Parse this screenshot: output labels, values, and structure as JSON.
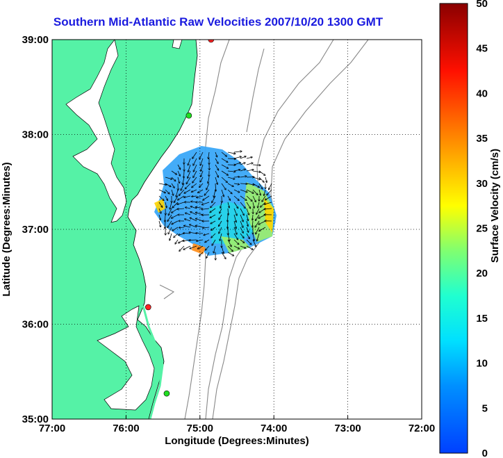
{
  "title": "Southern Mid-Atlantic Raw Velocities 2007/10/20 1300 GMT",
  "xlabel": "Longitude (Degrees:Minutes)",
  "ylabel": "Latitude (Degrees:Minutes)",
  "x_ticks": [
    "77:00",
    "76:00",
    "75:00",
    "74:00",
    "73:00",
    "72:00"
  ],
  "y_ticks": [
    "39:00",
    "38:00",
    "37:00",
    "36:00",
    "35:00"
  ],
  "colorbar": {
    "label": "Surface Velocity (cm/s)",
    "ticks": [
      "0",
      "5",
      "10",
      "15",
      "20",
      "25",
      "30",
      "35",
      "40",
      "45",
      "50"
    ],
    "range": [
      0,
      50
    ]
  },
  "map": {
    "lon_range": [
      -77,
      -72
    ],
    "lat_range": [
      35,
      39
    ],
    "land_color": "#55f2a6",
    "grid": "dotted",
    "stations": [
      {
        "color": "#ff2222",
        "lon": -74.85,
        "lat": 39.0
      },
      {
        "color": "#22dd22",
        "lon": -75.15,
        "lat": 38.2
      },
      {
        "color": "#ff2222",
        "lon": -75.7,
        "lat": 36.18
      },
      {
        "color": "#22dd22",
        "lon": -75.45,
        "lat": 35.27
      }
    ]
  }
}
